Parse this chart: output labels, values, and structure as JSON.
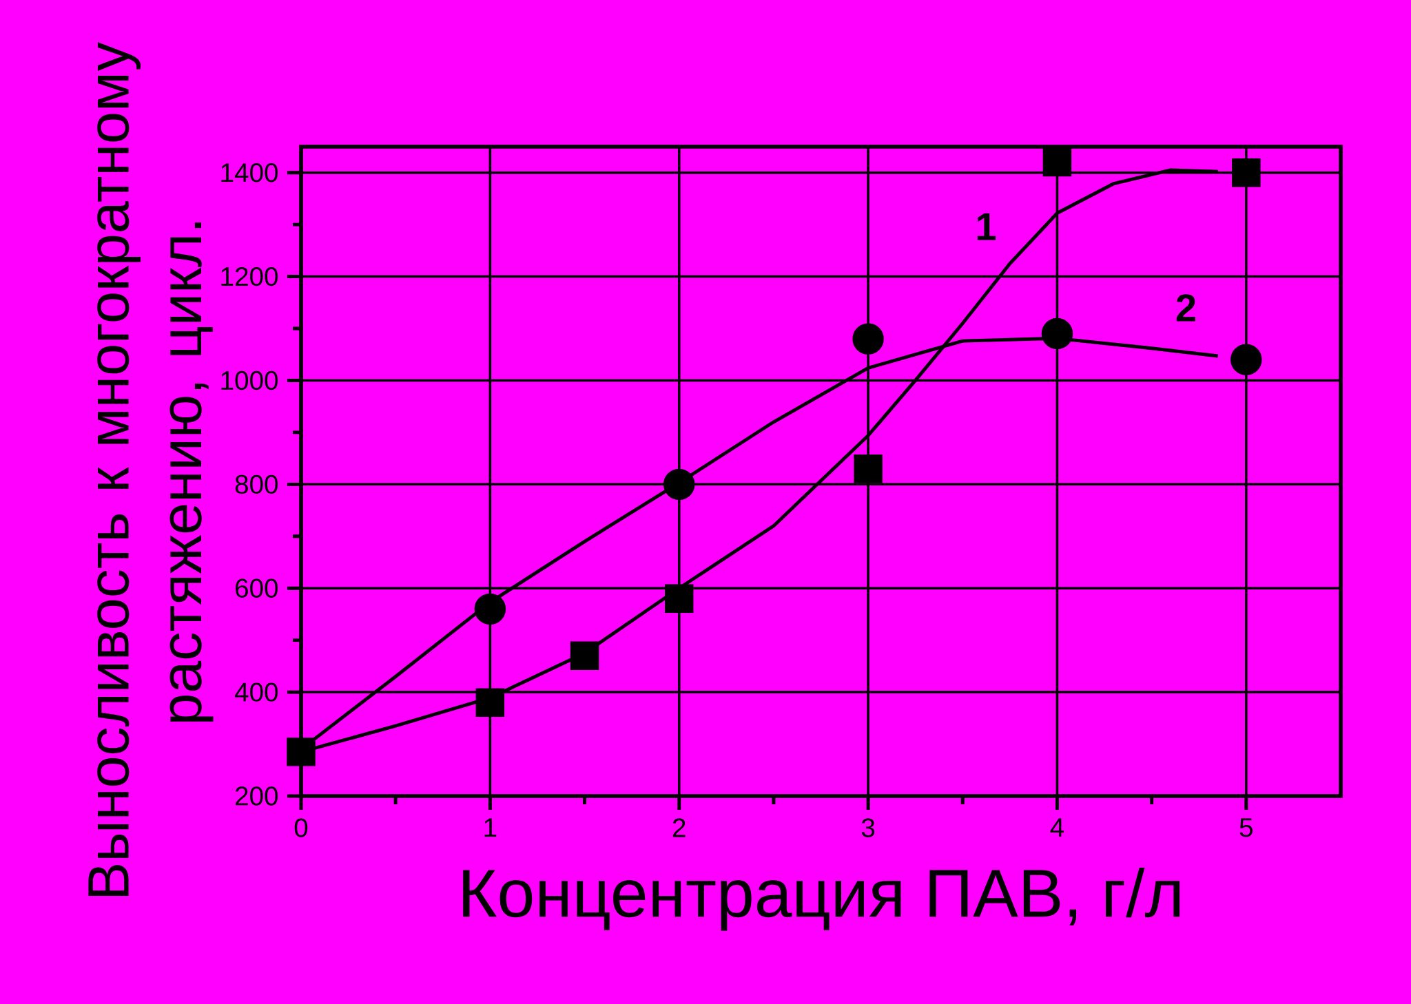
{
  "chart_data": {
    "type": "scatter",
    "xlabel": "Концентрация ПАВ, г/л",
    "ylabel": "Выносливость к многократному растяжению, цикл.",
    "xlim": [
      0,
      5.5
    ],
    "ylim": [
      200,
      1450
    ],
    "xticks": [
      0,
      1,
      2,
      3,
      4,
      5
    ],
    "yticks": [
      200,
      400,
      600,
      800,
      1000,
      1200,
      1400
    ],
    "grid": true,
    "series": [
      {
        "marker": "square",
        "color": "#000000",
        "x": [
          0,
          1,
          1.5,
          2,
          3,
          4,
          5
        ],
        "values": [
          285,
          380,
          470,
          580,
          830,
          1420,
          1400
        ]
      },
      {
        "marker": "circle",
        "color": "#000000",
        "x": [
          1,
          2,
          3,
          4,
          5
        ],
        "values": [
          560,
          800,
          1080,
          1090,
          1040
        ]
      },
      {
        "type": "line",
        "name": "1",
        "marker": "none",
        "color": "#000000",
        "x": [
          0,
          0.5,
          1,
          1.5,
          2,
          2.5,
          3,
          3.25,
          3.5,
          3.75,
          4,
          4.3,
          4.6,
          4.85
        ],
        "values": [
          285,
          335,
          389,
          475,
          600,
          720,
          894,
          1000,
          1110,
          1225,
          1322,
          1379,
          1405,
          1402
        ]
      },
      {
        "type": "line",
        "name": "2",
        "marker": "none",
        "color": "#000000",
        "x": [
          0,
          0.5,
          1,
          1.5,
          2,
          2.5,
          3,
          3.5,
          4,
          4.5,
          4.85
        ],
        "values": [
          290,
          430,
          573,
          690,
          803,
          920,
          1024,
          1076,
          1081,
          1062,
          1047
        ]
      }
    ]
  }
}
